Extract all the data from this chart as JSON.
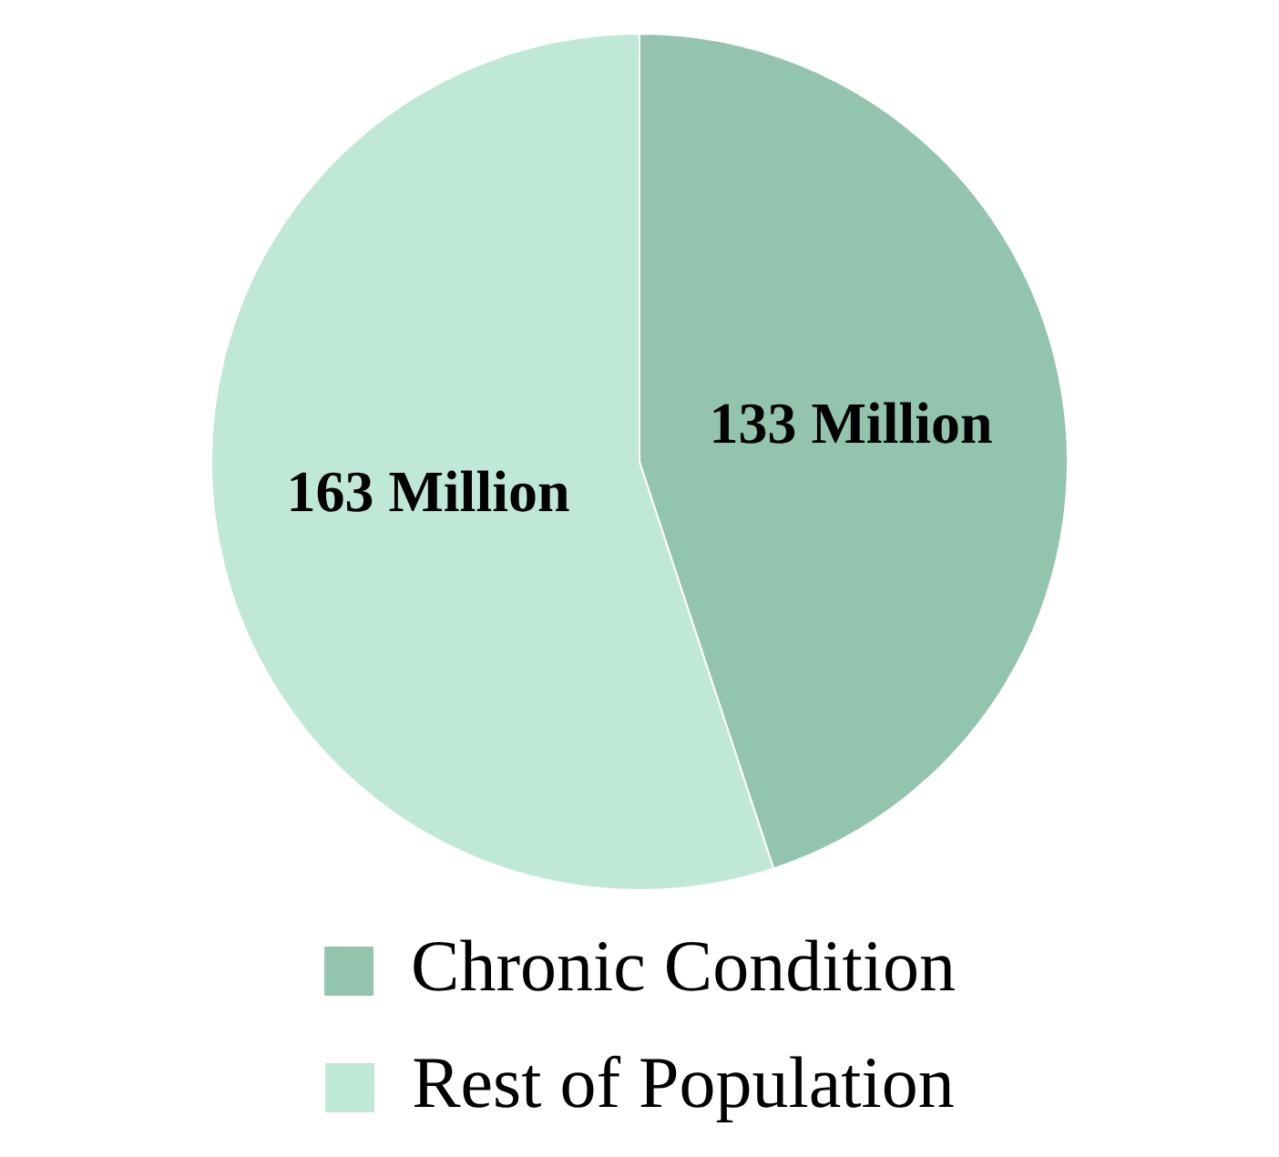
{
  "chart_data": {
    "type": "pie",
    "categories": [
      "Chronic Condition",
      "Rest of Population"
    ],
    "values": [
      133,
      163
    ],
    "colors": [
      "#93c4ad",
      "#c0e8d6"
    ],
    "value_labels": [
      "133 Million",
      "163 Million"
    ],
    "legend": "bottom"
  }
}
